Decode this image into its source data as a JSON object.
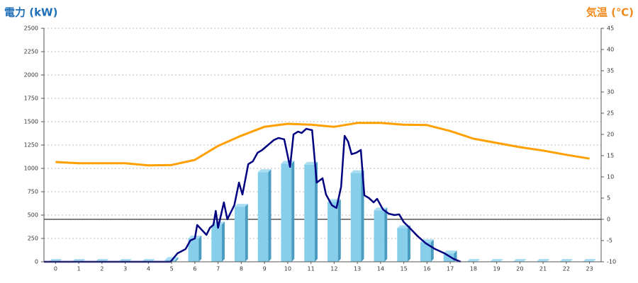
{
  "chart_data": {
    "type": "bar",
    "title": "電力 (kW)",
    "y2_title": "気温 (℃)",
    "categories": [
      "0",
      "1",
      "2",
      "3",
      "4",
      "5",
      "6",
      "7",
      "8",
      "9",
      "10",
      "11",
      "12",
      "13",
      "14",
      "15",
      "16",
      "17",
      "18",
      "19",
      "20",
      "21",
      "22",
      "23"
    ],
    "ylim": [
      0,
      2500
    ],
    "yticks": [
      0,
      250,
      500,
      750,
      1000,
      1250,
      1500,
      1750,
      2000,
      2250,
      2500
    ],
    "y2lim": [
      -10,
      45
    ],
    "y2ticks": [
      -10,
      -5,
      0,
      5,
      10,
      15,
      20,
      25,
      30,
      35,
      40,
      45
    ],
    "grid": true,
    "series": [
      {
        "type": "bar",
        "color": "#87ceeb",
        "values": [
          0,
          0,
          0,
          0,
          0,
          20,
          250,
          400,
          590,
          960,
          1050,
          1040,
          640,
          950,
          550,
          360,
          210,
          90,
          0,
          0,
          0,
          0,
          0,
          0
        ]
      },
      {
        "type": "line",
        "color": "#000080",
        "x": [
          -0.5,
          4.95,
          5.25,
          5.6,
          5.8,
          6.0,
          6.1,
          6.3,
          6.5,
          6.65,
          6.8,
          6.9,
          7.0,
          7.25,
          7.4,
          7.7,
          7.9,
          8.05,
          8.3,
          8.5,
          8.7,
          8.9,
          9.15,
          9.4,
          9.6,
          9.85,
          10.1,
          10.25,
          10.45,
          10.6,
          10.8,
          11.05,
          11.25,
          11.5,
          11.65,
          11.9,
          12.1,
          12.3,
          12.45,
          12.6,
          12.75,
          12.95,
          13.15,
          13.3,
          13.5,
          13.7,
          13.85,
          14.1,
          14.35,
          14.6,
          14.8,
          15.0,
          15.25,
          15.6,
          15.95,
          16.35,
          16.75,
          17.15,
          17.45
        ],
        "values": [
          0,
          0,
          90,
          136,
          227,
          250,
          394,
          341,
          288,
          364,
          394,
          545,
          364,
          636,
          455,
          606,
          848,
          720,
          1045,
          1076,
          1167,
          1197,
          1250,
          1303,
          1326,
          1311,
          1015,
          1364,
          1394,
          1379,
          1424,
          1409,
          848,
          894,
          720,
          606,
          576,
          803,
          1348,
          1288,
          1152,
          1167,
          1197,
          712,
          682,
          636,
          674,
          561,
          515,
          500,
          508,
          424,
          364,
          273,
          197,
          136,
          91,
          30,
          0
        ]
      },
      {
        "type": "line",
        "axis": "y2",
        "color": "#ffa000",
        "values": [
          13.5,
          13.2,
          13.2,
          13.2,
          12.7,
          12.8,
          14,
          17.3,
          19.7,
          21.8,
          22.5,
          22.3,
          21.8,
          22.7,
          22.7,
          22.3,
          22.2,
          20.8,
          19,
          18,
          17,
          16.2,
          15.2,
          14.3
        ]
      }
    ]
  }
}
